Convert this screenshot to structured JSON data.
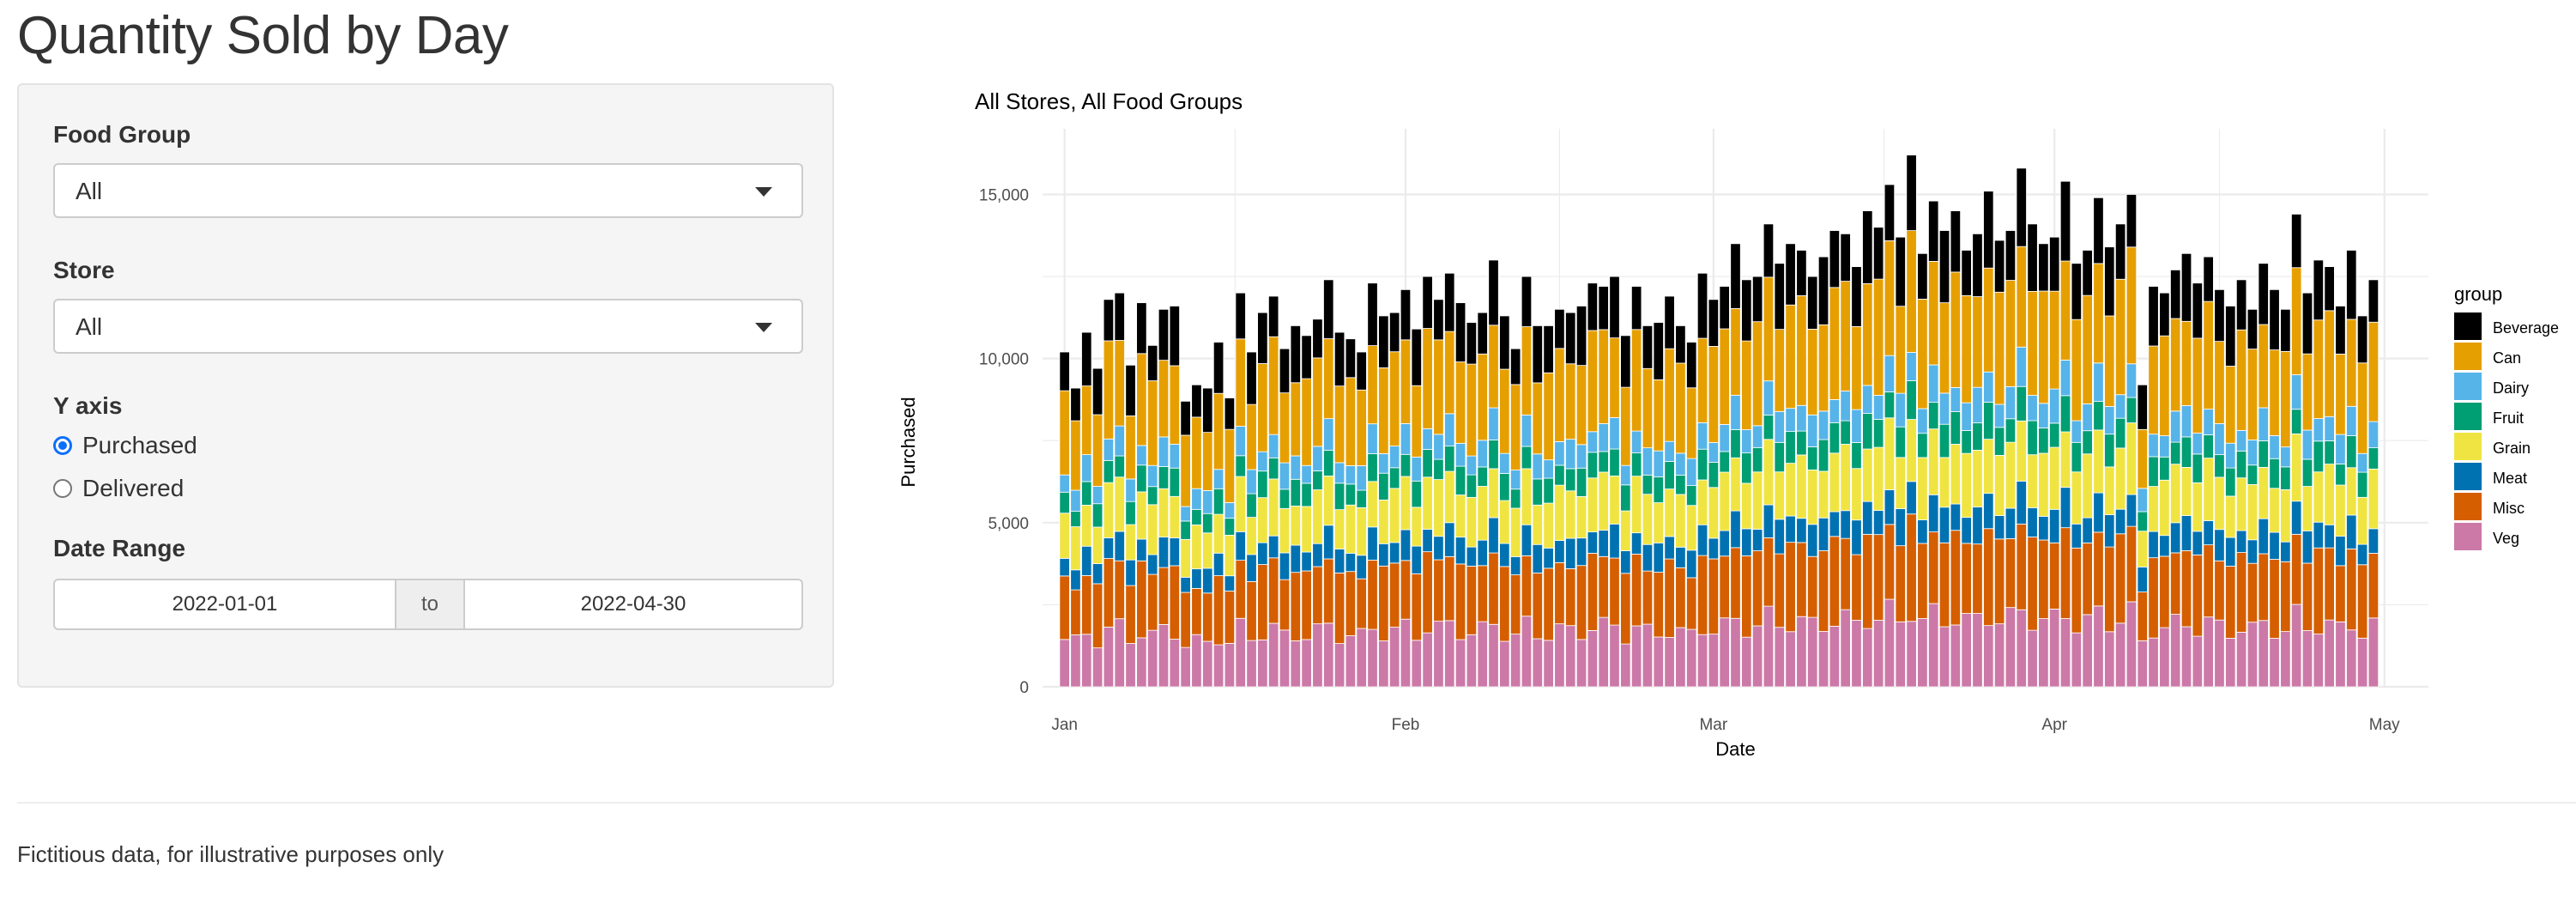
{
  "page": {
    "title": "Quantity Sold by Day",
    "footnote": "Fictitious data, for illustrative purposes only"
  },
  "sidebar": {
    "food_group": {
      "label": "Food Group",
      "value": "All"
    },
    "store": {
      "label": "Store",
      "value": "All"
    },
    "y_axis": {
      "label": "Y axis",
      "options": [
        {
          "label": "Purchased",
          "checked": true
        },
        {
          "label": "Delivered",
          "checked": false
        }
      ]
    },
    "date_range": {
      "label": "Date Range",
      "start": "2022-01-01",
      "separator": "to",
      "end": "2022-04-30"
    },
    "accent_color": "#0d6efd"
  },
  "chart_data": {
    "type": "bar",
    "stacked": true,
    "title": "All Stores, All Food Groups",
    "xlabel": "Date",
    "ylabel": "Purchased",
    "ylim": [
      0,
      17000
    ],
    "yticks": [
      0,
      5000,
      10000,
      15000
    ],
    "ytick_labels": [
      "0",
      "5,000",
      "10,000",
      "15,000"
    ],
    "xlim": [
      "2021-12-30",
      "2022-05-05"
    ],
    "xticks": [
      "2022-01-01",
      "2022-02-01",
      "2022-03-01",
      "2022-04-01",
      "2022-05-01"
    ],
    "xtick_labels": [
      "Jan",
      "Feb",
      "Mar",
      "Apr",
      "May"
    ],
    "grid": true,
    "legend": {
      "title": "group",
      "placement": "right"
    },
    "start_date": "2022-01-01",
    "days": 120,
    "groups": [
      "Beverage",
      "Can",
      "Dairy",
      "Fruit",
      "Grain",
      "Meat",
      "Misc",
      "Veg"
    ],
    "colors": {
      "Beverage": "#000000",
      "Can": "#E69F00",
      "Dairy": "#56B4E9",
      "Fruit": "#009E73",
      "Grain": "#F0E442",
      "Meat": "#0072B2",
      "Misc": "#D55E00",
      "Veg": "#CC79A7"
    },
    "totals": [
      10200,
      9100,
      10800,
      9700,
      11800,
      12000,
      9800,
      11700,
      10400,
      11500,
      11600,
      8700,
      9200,
      9100,
      10500,
      8800,
      12000,
      10200,
      11400,
      11900,
      10300,
      11000,
      10700,
      11200,
      12400,
      10800,
      10600,
      10200,
      12300,
      11300,
      11400,
      12100,
      10900,
      12500,
      11800,
      12600,
      11700,
      11100,
      11400,
      13000,
      11300,
      10300,
      12500,
      11000,
      11000,
      11500,
      11400,
      11600,
      12300,
      12200,
      12500,
      10700,
      12200,
      11000,
      11100,
      11900,
      11000,
      10500,
      12600,
      11800,
      12200,
      13500,
      12400,
      12500,
      14100,
      12900,
      13500,
      13300,
      12500,
      13100,
      13900,
      13800,
      12800,
      14500,
      14000,
      15300,
      13700,
      16200,
      13200,
      14800,
      13900,
      14500,
      13300,
      13800,
      15100,
      13600,
      13900,
      15800,
      14100,
      13500,
      13700,
      15400,
      12900,
      13300,
      14900,
      13400,
      14100,
      15000,
      9200,
      12200,
      12000,
      12700,
      13200,
      12300,
      13100,
      12100,
      11600,
      12400,
      11500,
      12900,
      12100,
      11500,
      14400,
      12000,
      13000,
      12800,
      11600,
      13300,
      11300,
      12400
    ],
    "shares": {
      "Veg": 0.148,
      "Misc": 0.175,
      "Meat": 0.067,
      "Grain": 0.128,
      "Fruit": 0.063,
      "Dairy": 0.064,
      "Can": 0.225,
      "Beverage": 0.13
    }
  }
}
